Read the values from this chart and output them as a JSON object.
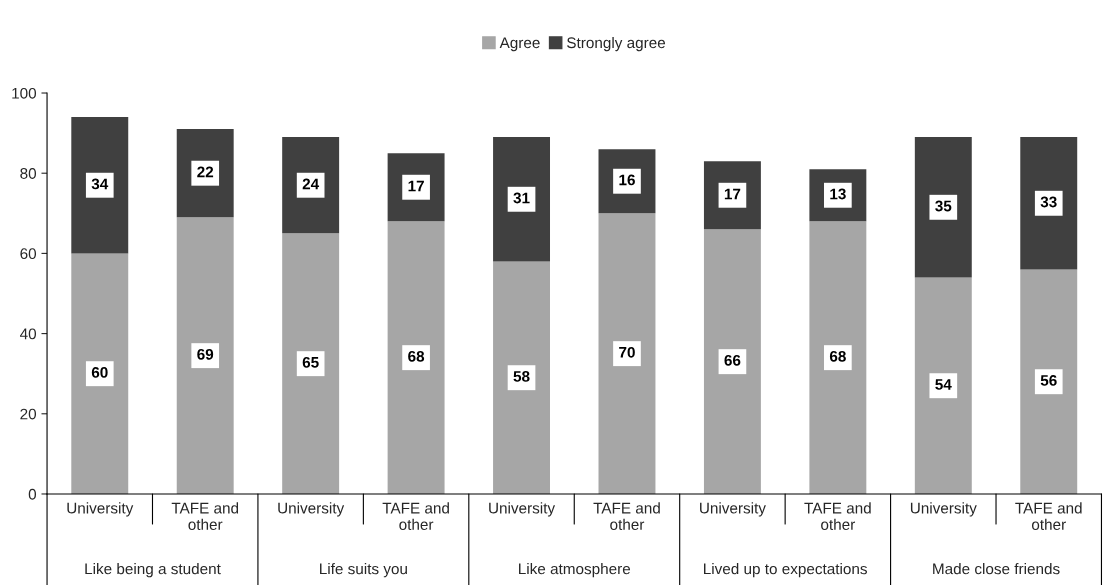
{
  "chart_data": {
    "type": "bar",
    "stacked": true,
    "data_labels": true,
    "legend": "top",
    "grid": false,
    "categories": [
      "University",
      "TAFE and\nother",
      "University",
      "TAFE and\nother",
      "University",
      "TAFE and\nother",
      "University",
      "TAFE and\nother",
      "University",
      "TAFE and\nother"
    ],
    "annotations": [
      "Like being a student",
      "Life suits you",
      "Like atmosphere",
      "Lived up to expectations",
      "Made close friends"
    ],
    "ylim": [
      0,
      100
    ],
    "yticks": [
      0,
      20,
      40,
      60,
      80,
      100
    ],
    "series": [
      {
        "name": "Agree",
        "color": "#a6a6a6",
        "values": [
          60,
          69,
          65,
          68,
          58,
          70,
          66,
          68,
          54,
          56
        ]
      },
      {
        "name": "Strongly agree",
        "color": "#404040",
        "values": [
          34,
          22,
          24,
          17,
          31,
          16,
          17,
          13,
          35,
          33
        ]
      }
    ]
  }
}
